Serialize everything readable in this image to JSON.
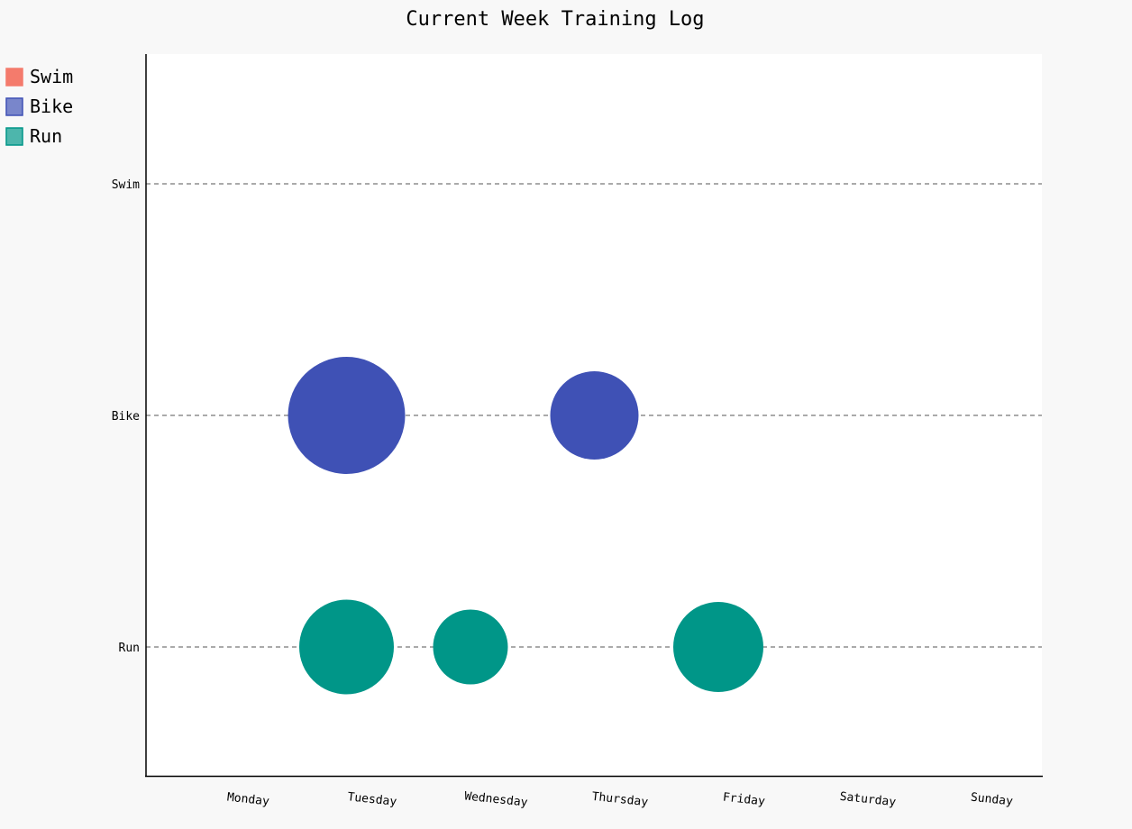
{
  "chart_data": {
    "type": "scatter",
    "title": "Current Week Training Log",
    "categories": [
      "Monday",
      "Tuesday",
      "Wednesday",
      "Thursday",
      "Friday",
      "Saturday",
      "Sunday"
    ],
    "y_categories": [
      "Swim",
      "Bike",
      "Run"
    ],
    "legend_placement": "top-left",
    "grid": "horizontal dashed lines at each activity",
    "series": [
      {
        "name": "Swim",
        "color": "#f47b6c",
        "legend_color": "#f47b6c",
        "points": []
      },
      {
        "name": "Bike",
        "color": "#3f51b5",
        "legend_color": "#7986cb",
        "points": [
          {
            "x": "Tuesday",
            "y": "Bike",
            "size": 130
          },
          {
            "x": "Thursday",
            "y": "Bike",
            "size": 98
          }
        ]
      },
      {
        "name": "Run",
        "color": "#009688",
        "legend_color": "#4db6ac",
        "points": [
          {
            "x": "Tuesday",
            "y": "Run",
            "size": 105
          },
          {
            "x": "Wednesday",
            "y": "Run",
            "size": 83
          },
          {
            "x": "Friday",
            "y": "Run",
            "size": 100
          }
        ]
      }
    ]
  }
}
